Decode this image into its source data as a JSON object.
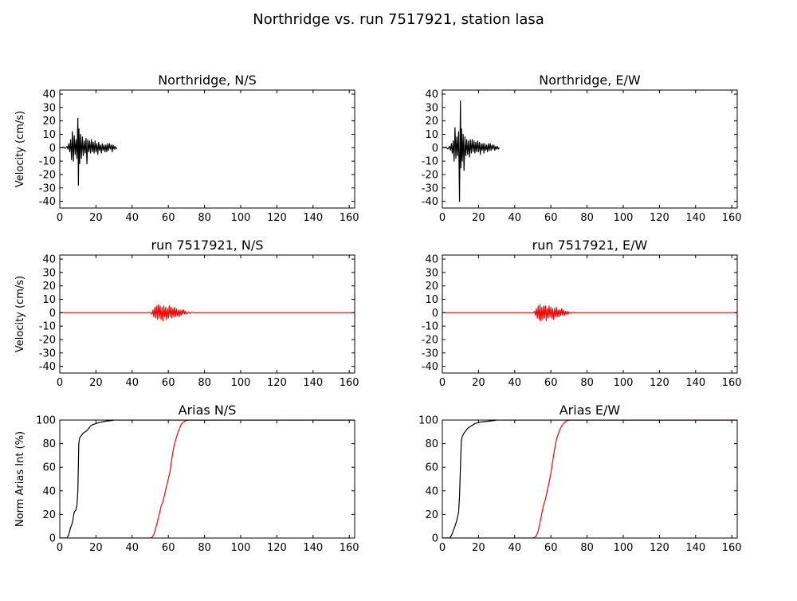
{
  "figure": {
    "title": "Northridge vs. run 7517921, station lasa"
  },
  "colors": {
    "recorded": "#000000",
    "simulated": "#ff0000"
  },
  "chart_data": [
    {
      "type": "line",
      "title": "Northridge, N/S",
      "xlabel": "",
      "ylabel": "Velocity (cm/s)",
      "xlim": [
        0,
        163
      ],
      "ylim": [
        -45,
        43
      ],
      "xticks": [
        0,
        20,
        40,
        60,
        80,
        100,
        120,
        140,
        160
      ],
      "yticks": [
        40,
        30,
        20,
        10,
        0,
        -10,
        -20,
        -30,
        -40
      ],
      "series": [
        {
          "color": "#000000",
          "x": [
            0,
            1,
            2,
            3,
            4,
            4.5,
            5,
            5.5,
            6,
            6.5,
            7,
            7.5,
            8,
            8.5,
            9,
            9.5,
            10,
            10.3,
            10.6,
            11,
            11.5,
            12,
            12.5,
            13,
            13.5,
            14,
            14.5,
            15,
            15.5,
            16,
            16.5,
            17,
            17.5,
            18,
            18.5,
            19,
            19.5,
            20,
            20.5,
            21,
            21.5,
            22,
            22.5,
            23,
            23.5,
            24,
            24.5,
            25,
            25.5,
            26,
            26.5,
            27,
            27.5,
            28,
            28.5,
            29,
            29.5,
            30,
            30.5,
            31,
            31.5
          ],
          "y": [
            0,
            0,
            0.5,
            -0.5,
            1,
            -1,
            3,
            -3,
            6,
            -9,
            12,
            -10,
            9,
            -5,
            6,
            -8,
            22,
            -28,
            14,
            -12,
            10,
            -8,
            8,
            -6,
            5,
            -4,
            7,
            -12,
            6,
            -3,
            5,
            -4,
            6,
            -3,
            4,
            -4,
            5,
            -3,
            3,
            -5,
            4,
            -2,
            2,
            -4,
            3,
            -2,
            2,
            -3,
            2,
            -3,
            3,
            -2,
            3,
            -1,
            2,
            -3,
            2,
            -1,
            1,
            -1,
            0
          ]
        }
      ]
    },
    {
      "type": "line",
      "title": "Northridge, E/W",
      "xlabel": "",
      "ylabel": "",
      "xlim": [
        0,
        163
      ],
      "ylim": [
        -45,
        43
      ],
      "xticks": [
        0,
        20,
        40,
        60,
        80,
        100,
        120,
        140,
        160
      ],
      "yticks": [
        40,
        30,
        20,
        10,
        0,
        -10,
        -20,
        -30,
        -40
      ],
      "series": [
        {
          "color": "#000000",
          "x": [
            0,
            1,
            2,
            3,
            4,
            4.5,
            5,
            5.5,
            6,
            6.5,
            7,
            7.5,
            8,
            8.5,
            9,
            9.5,
            10,
            10.3,
            10.6,
            11,
            11.5,
            12,
            12.5,
            13,
            13.5,
            14,
            14.5,
            15,
            15.5,
            16,
            16.5,
            17,
            17.5,
            18,
            18.5,
            19,
            19.5,
            20,
            20.5,
            21,
            21.5,
            22,
            22.5,
            23,
            23.5,
            24,
            24.5,
            25,
            25.5,
            26,
            26.5,
            27,
            27.5,
            28,
            28.5,
            29,
            29.5,
            30,
            30.5,
            31,
            31.5
          ],
          "y": [
            0,
            0,
            0.5,
            -1,
            1,
            -2,
            3,
            -4,
            5,
            -10,
            15,
            -8,
            8,
            -6,
            12,
            -40,
            35,
            -15,
            14,
            -10,
            10,
            -17,
            8,
            -6,
            6,
            -5,
            5,
            -7,
            6,
            -4,
            6,
            -3,
            5,
            -4,
            4,
            -3,
            5,
            -3,
            4,
            -5,
            3,
            -2,
            3,
            -4,
            3,
            -2,
            2,
            -3,
            3,
            -2,
            3,
            -2,
            2,
            -1,
            2,
            -2,
            1,
            -1,
            1,
            -1,
            0
          ]
        }
      ]
    },
    {
      "type": "line",
      "title": "run 7517921, N/S",
      "xlabel": "",
      "ylabel": "Velocity (cm/s)",
      "xlim": [
        0,
        163
      ],
      "ylim": [
        -45,
        43
      ],
      "xticks": [
        0,
        20,
        40,
        60,
        80,
        100,
        120,
        140,
        160
      ],
      "yticks": [
        40,
        30,
        20,
        10,
        0,
        -10,
        -20,
        -30,
        -40
      ],
      "series": [
        {
          "color": "#ff0000",
          "x": [
            0,
            20,
            40,
            48,
            50,
            51,
            51.5,
            52,
            52.5,
            53,
            53.5,
            54,
            54.5,
            55,
            55.5,
            56,
            56.5,
            57,
            57.5,
            58,
            58.5,
            59,
            59.5,
            60,
            60.5,
            61,
            61.5,
            62,
            62.5,
            63,
            63.5,
            64,
            64.5,
            65,
            65.5,
            66,
            66.5,
            67,
            67.5,
            68,
            68.5,
            69,
            69.5,
            70,
            71,
            72,
            73,
            75,
            80,
            100,
            120,
            140,
            163
          ],
          "y": [
            0,
            0,
            0,
            0,
            0.3,
            -1,
            2,
            -3,
            4,
            -4,
            5,
            -5,
            6,
            -4,
            5,
            -5,
            4,
            -6,
            5,
            -3,
            4,
            -5,
            3,
            -4,
            5,
            -3,
            4,
            -4,
            3,
            -3,
            4,
            -3,
            3,
            -2,
            2,
            -3,
            2,
            -2,
            2,
            -1,
            2,
            -1,
            1,
            -1,
            0.5,
            -0.5,
            0.3,
            0,
            0,
            0,
            0,
            0,
            0
          ]
        }
      ]
    },
    {
      "type": "line",
      "title": "run 7517921, E/W",
      "xlabel": "",
      "ylabel": "",
      "xlim": [
        0,
        163
      ],
      "ylim": [
        -45,
        43
      ],
      "xticks": [
        0,
        20,
        40,
        60,
        80,
        100,
        120,
        140,
        160
      ],
      "yticks": [
        40,
        30,
        20,
        10,
        0,
        -10,
        -20,
        -30,
        -40
      ],
      "series": [
        {
          "color": "#ff0000",
          "x": [
            0,
            20,
            40,
            48,
            50,
            51,
            51.5,
            52,
            52.5,
            53,
            53.5,
            54,
            54.5,
            55,
            55.5,
            56,
            56.5,
            57,
            57.5,
            58,
            58.5,
            59,
            59.5,
            60,
            60.5,
            61,
            61.5,
            62,
            62.5,
            63,
            63.5,
            64,
            64.5,
            65,
            65.5,
            66,
            66.5,
            67,
            67.5,
            68,
            68.5,
            69,
            69.5,
            70,
            71,
            72,
            73,
            75,
            80,
            100,
            120,
            140,
            163
          ],
          "y": [
            0,
            0,
            0,
            0,
            -0.3,
            1,
            -2,
            3,
            -4,
            5,
            -5,
            6,
            -6,
            4,
            -5,
            5,
            -4,
            5,
            -6,
            3,
            -4,
            5,
            -3,
            4,
            -4,
            3,
            -5,
            3,
            -3,
            4,
            -3,
            2,
            -3,
            2,
            -2,
            3,
            -2,
            2,
            -2,
            1,
            -1,
            1,
            -1,
            0.5,
            -0.5,
            0.3,
            0,
            0,
            0,
            0,
            0,
            0,
            0
          ]
        }
      ]
    },
    {
      "type": "line",
      "title": "Arias N/S",
      "xlabel": "",
      "ylabel": "Norm Arias Int (%)",
      "xlim": [
        0,
        163
      ],
      "ylim": [
        0,
        100
      ],
      "xticks": [
        0,
        20,
        40,
        60,
        80,
        100,
        120,
        140,
        160
      ],
      "yticks": [
        100,
        80,
        60,
        40,
        20,
        0
      ],
      "series": [
        {
          "color": "#000000",
          "x": [
            0,
            4,
            5,
            6,
            7,
            8,
            9,
            9.5,
            10,
            10.5,
            11,
            12,
            13,
            14,
            15,
            16,
            17,
            18,
            20,
            22,
            25,
            28,
            30,
            31.5,
            163
          ],
          "y": [
            0,
            0,
            3,
            9,
            13,
            22,
            24,
            28,
            40,
            80,
            85,
            87,
            89,
            90,
            91,
            93,
            95,
            96,
            97,
            98,
            99,
            99.5,
            100,
            100,
            100
          ]
        },
        {
          "color": "#ff0000",
          "x": [
            0,
            40,
            50,
            51,
            52,
            53,
            54,
            55,
            56,
            57,
            58,
            59,
            60,
            61,
            62,
            63,
            64,
            65,
            66,
            67,
            68,
            69,
            70,
            71,
            72,
            163
          ],
          "y": [
            0,
            0,
            0,
            0.5,
            3,
            8,
            14,
            20,
            27,
            31,
            37,
            44,
            50,
            57,
            68,
            77,
            83,
            88,
            92,
            96,
            98,
            99,
            99.5,
            100,
            100,
            100
          ]
        }
      ]
    },
    {
      "type": "line",
      "title": "Arias E/W",
      "xlabel": "",
      "ylabel": "",
      "xlim": [
        0,
        163
      ],
      "ylim": [
        0,
        100
      ],
      "xticks": [
        0,
        20,
        40,
        60,
        80,
        100,
        120,
        140,
        160
      ],
      "yticks": [
        100,
        80,
        60,
        40,
        20,
        0
      ],
      "series": [
        {
          "color": "#000000",
          "x": [
            0,
            4,
            5,
            6,
            7,
            8,
            9,
            9.5,
            10,
            10.5,
            11,
            12,
            13,
            14,
            15,
            16,
            17,
            18,
            20,
            22,
            25,
            28,
            30,
            31.5,
            163
          ],
          "y": [
            0,
            0,
            2,
            6,
            10,
            15,
            22,
            35,
            60,
            82,
            86,
            89,
            91,
            93,
            94,
            95,
            96,
            97,
            98,
            98.5,
            99,
            99.5,
            100,
            100,
            100
          ]
        },
        {
          "color": "#ff0000",
          "x": [
            0,
            40,
            50,
            51,
            52,
            53,
            54,
            55,
            56,
            57,
            58,
            59,
            60,
            61,
            62,
            63,
            64,
            65,
            66,
            67,
            68,
            69,
            70,
            71,
            163
          ],
          "y": [
            0,
            0,
            0,
            0.5,
            2,
            6,
            13,
            21,
            28,
            33,
            40,
            47,
            55,
            65,
            75,
            83,
            88,
            92,
            95,
            97,
            98.5,
            99.5,
            100,
            100,
            100
          ]
        }
      ]
    }
  ]
}
